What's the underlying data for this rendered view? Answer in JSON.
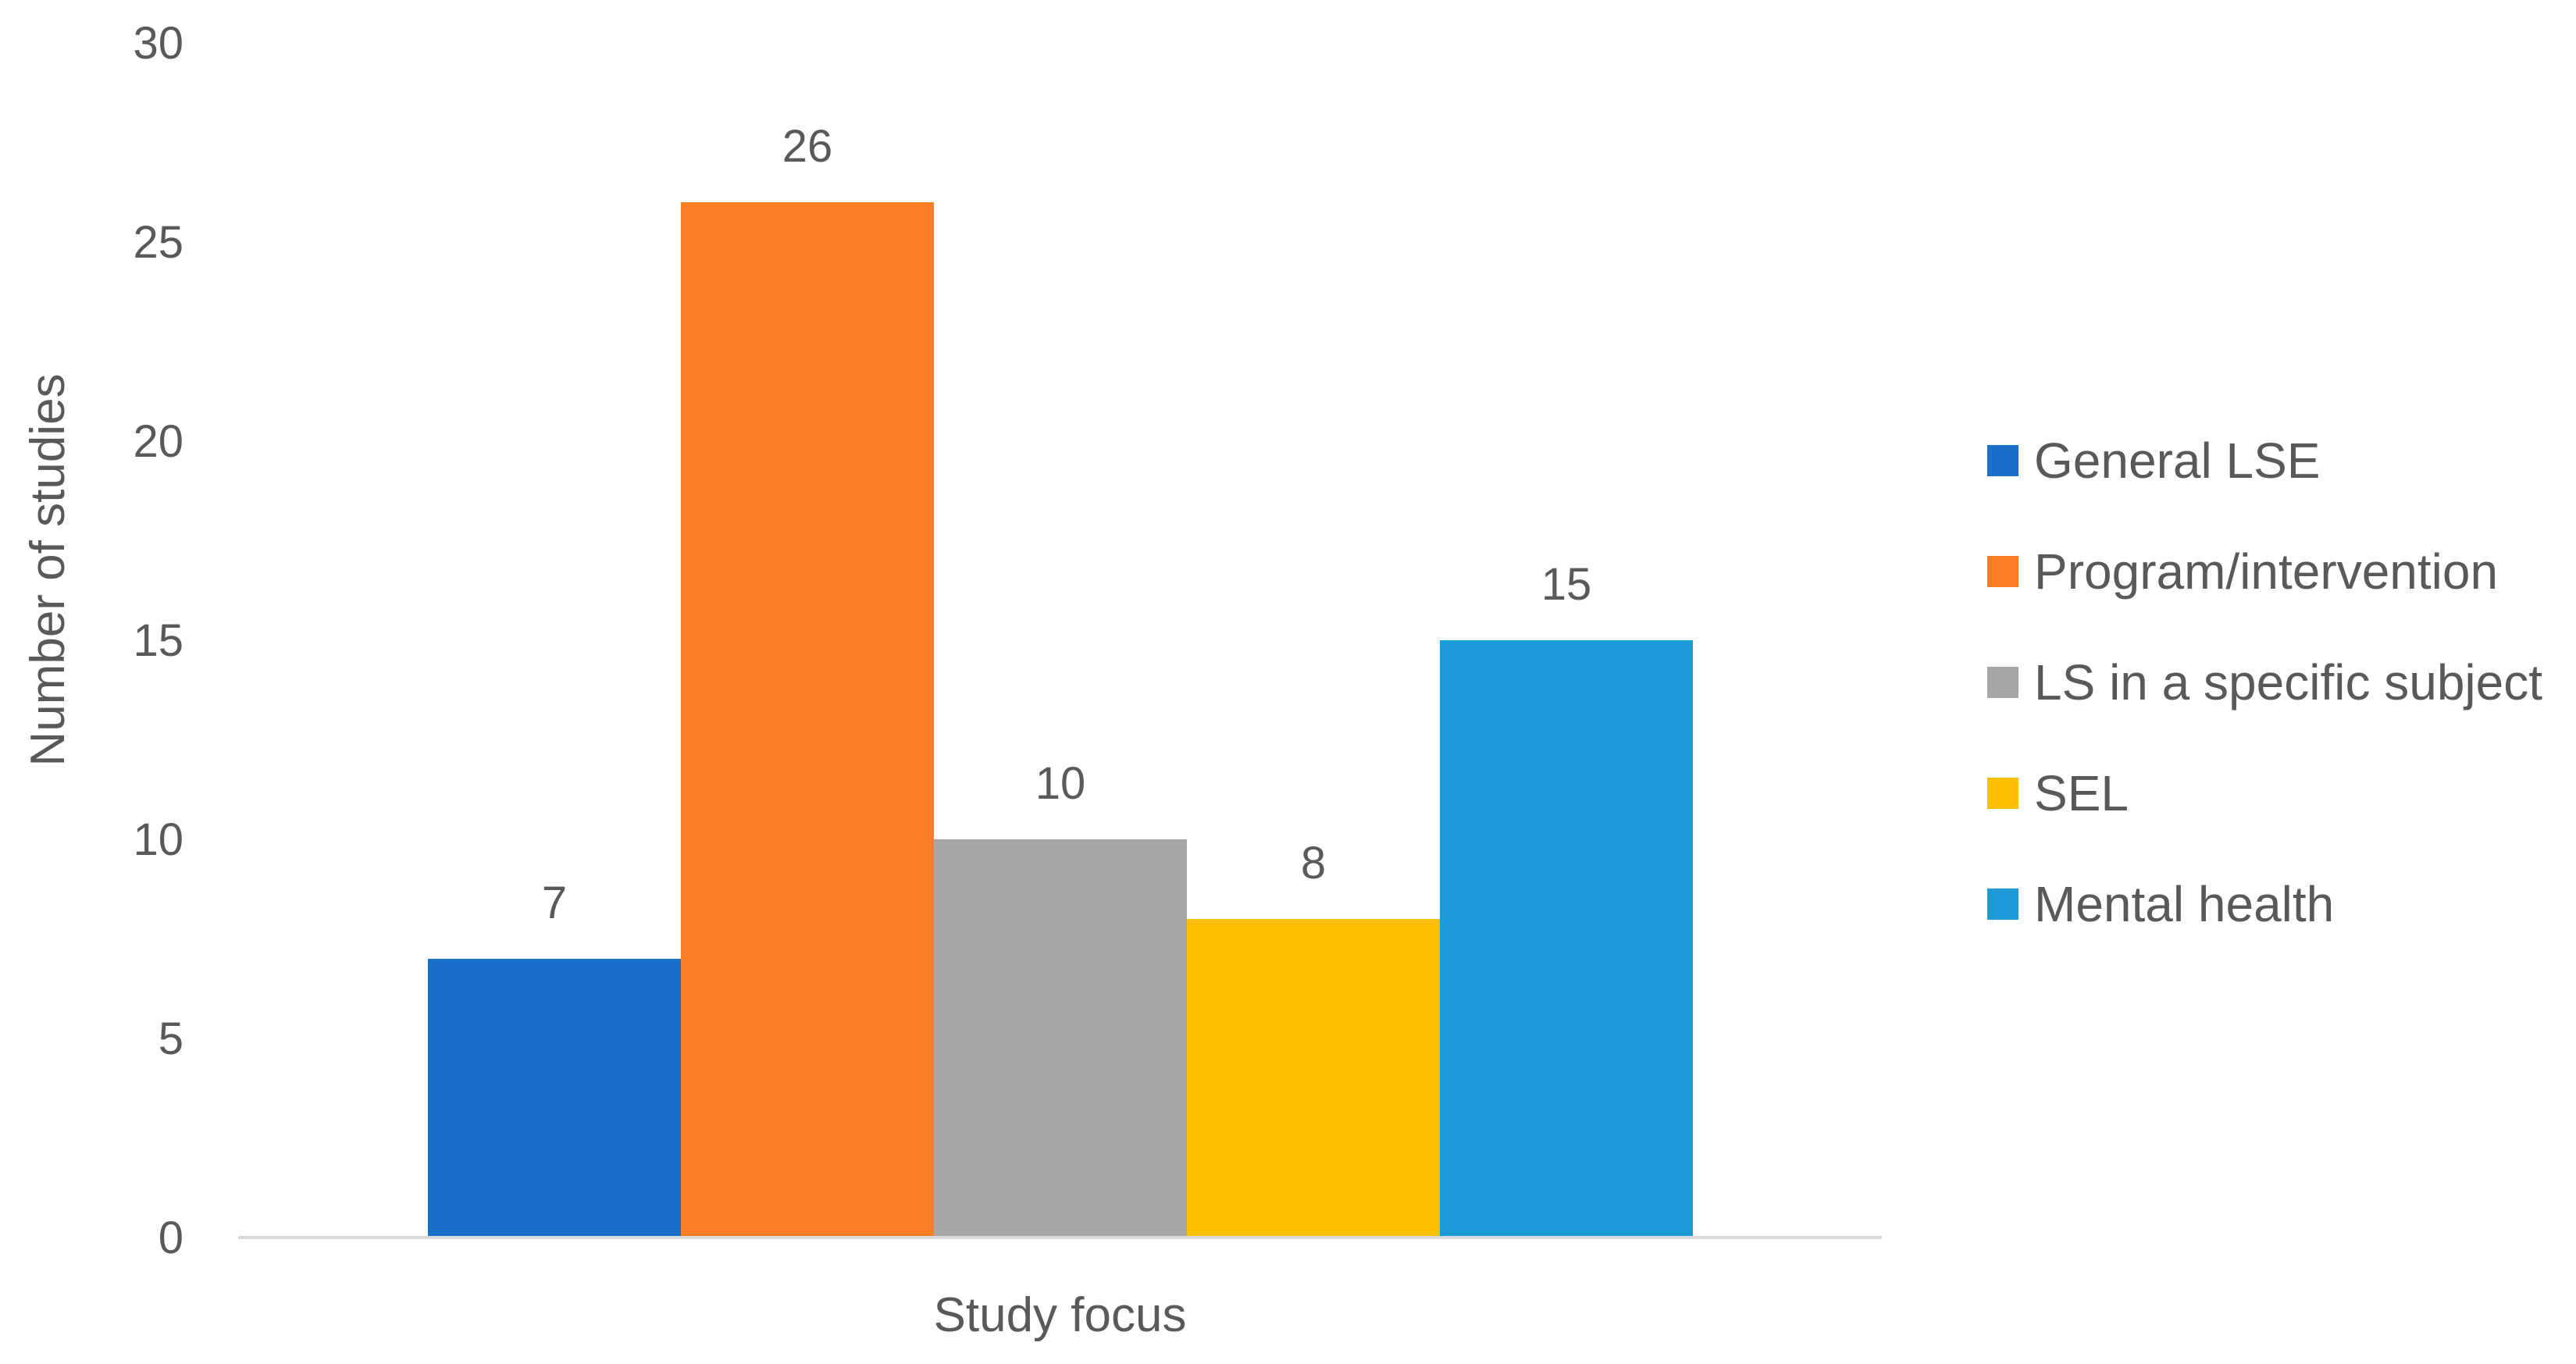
{
  "chart_data": {
    "type": "bar",
    "title": "",
    "xlabel": "Study focus",
    "ylabel": "Number of studies",
    "ylim": [
      0,
      30
    ],
    "y_ticks": [
      0,
      5,
      10,
      15,
      20,
      25,
      30
    ],
    "grid": false,
    "legend_position": "right",
    "data_labels": true,
    "categories": [
      "Study focus"
    ],
    "series": [
      {
        "name": "General LSE",
        "values": [
          7
        ],
        "color": "#1870C8"
      },
      {
        "name": "Program/intervention",
        "values": [
          26
        ],
        "color": "#FD7E24"
      },
      {
        "name": "LS in a specific subject",
        "values": [
          10
        ],
        "color": "#A6A6A6"
      },
      {
        "name": "SEL",
        "values": [
          8
        ],
        "color": "#FDBF00"
      },
      {
        "name": "Mental health",
        "values": [
          15
        ],
        "color": "#1D9BD8"
      }
    ]
  }
}
